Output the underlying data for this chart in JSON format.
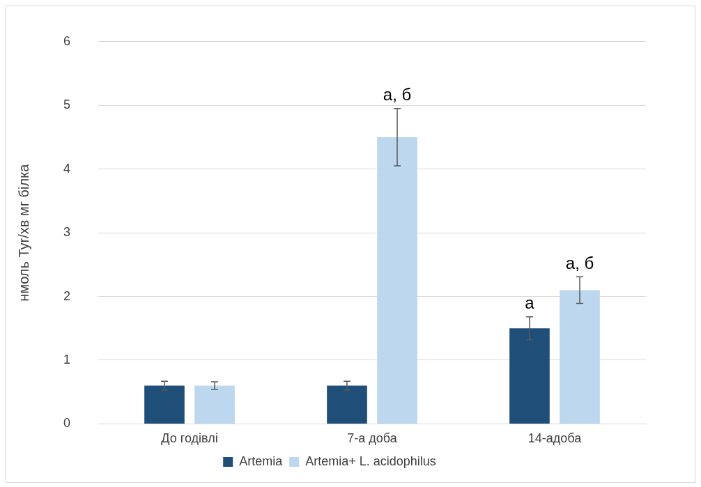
{
  "chart_data": {
    "type": "bar",
    "ylabel": "нмоль Tyr/хв мг білка",
    "categories": [
      "До годівлі",
      "7-а доба",
      "14-адоба"
    ],
    "series": [
      {
        "name": "Artemia",
        "color": "#1f4e79",
        "values": [
          0.6,
          0.6,
          1.5
        ],
        "value_labels": [
          null,
          null,
          "а"
        ],
        "errors": [
          0.07,
          0.07,
          0.18
        ]
      },
      {
        "name": "Artemia+ L. acidophilus",
        "color": "#bdd7ee",
        "values": [
          0.6,
          4.5,
          2.1
        ],
        "value_labels": [
          null,
          "а, б",
          "а, б"
        ],
        "errors": [
          0.06,
          0.45,
          0.21
        ]
      }
    ],
    "ylim": [
      0,
      6
    ],
    "yticks": [
      0,
      1,
      2,
      3,
      4,
      5,
      6
    ],
    "grid": "y",
    "legend": "bottom"
  }
}
